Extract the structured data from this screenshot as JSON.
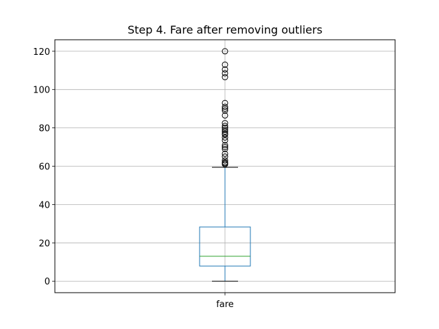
{
  "chart_data": {
    "type": "boxplot",
    "title": "Step 4. Fare after removing outliers",
    "xlabel": "",
    "ylabel": "",
    "categories": [
      "fare"
    ],
    "ylim": [
      -6,
      126
    ],
    "yticks": [
      0,
      20,
      40,
      60,
      80,
      100,
      120
    ],
    "grid": true,
    "box": {
      "whisker_low": 0,
      "q1": 7.9,
      "median": 13,
      "q3": 28.3,
      "whisker_high": 59.4
    },
    "outliers": [
      61,
      61.5,
      62,
      63,
      65,
      66.5,
      69,
      70,
      71,
      73.5,
      75,
      76.5,
      77,
      78,
      79,
      80,
      81,
      82.5,
      86.5,
      89,
      90,
      91,
      93,
      106.5,
      108.5,
      110.5,
      113,
      120
    ],
    "colors": {
      "box": "#1f77b4",
      "median": "#2ca02c",
      "whisker": "#1f77b4",
      "cap": "#000000",
      "grid": "#b0b0b0",
      "outlier": "#000000"
    }
  }
}
